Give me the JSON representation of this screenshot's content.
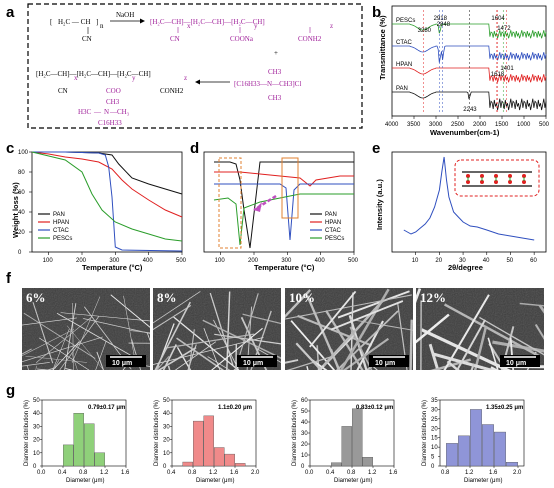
{
  "panels": {
    "a": "a",
    "b": "b",
    "c": "c",
    "d": "d",
    "e": "e",
    "f": "f",
    "g": "g"
  },
  "scheme": {
    "reagent": "NaOH",
    "plus": "+",
    "sub_n": "n",
    "sub_x": "x",
    "sub_y": "y",
    "sub_z": "z",
    "group_cn": "CN",
    "group_coona": "COONa",
    "group_conh2": "CONH2",
    "group_coo": "COO",
    "group_ch3": "CH3",
    "group_c16h33": "C16H33",
    "group_h3c": "H3C",
    "group_n": "N",
    "ctac_formula": "[C16H33—N—CH3]Cl"
  },
  "chart_data": [
    {
      "type": "line",
      "id": "b",
      "title": "",
      "xlabel": "Wavenumber(cm-1)",
      "ylabel": "Transmittance (%)",
      "xlim": [
        4000,
        500
      ],
      "x_ticks": [
        "4000",
        "3500",
        "3000",
        "2500",
        "2000",
        "1500",
        "1000",
        "500"
      ],
      "series": [
        {
          "name": "PESCs",
          "color": "#2a9d2a"
        },
        {
          "name": "CTAC",
          "color": "#2f4fbf"
        },
        {
          "name": "HPAN",
          "color": "#e02020"
        },
        {
          "name": "PAN",
          "color": "#111111"
        }
      ],
      "annotations": [
        "3280",
        "2918",
        "2848",
        "1604",
        "1472",
        "1618",
        "1401",
        "2243"
      ]
    },
    {
      "type": "line",
      "id": "c",
      "xlabel": "Temperature (°C)",
      "ylabel": "Weight loss (%)",
      "xlim": [
        50,
        500
      ],
      "ylim": [
        0,
        100
      ],
      "x_ticks": [
        "100",
        "200",
        "300",
        "400",
        "500"
      ],
      "y_ticks": [
        "0",
        "20",
        "40",
        "60",
        "80",
        "100"
      ],
      "series": [
        {
          "name": "PAN",
          "color": "#111111",
          "x": [
            50,
            150,
            250,
            290,
            310,
            350,
            400,
            450,
            500
          ],
          "y": [
            100,
            100,
            99,
            97,
            88,
            74,
            68,
            63,
            58
          ]
        },
        {
          "name": "HPAN",
          "color": "#e02020",
          "x": [
            50,
            100,
            150,
            200,
            250,
            290,
            320,
            350,
            400,
            450,
            500
          ],
          "y": [
            100,
            98,
            95,
            93,
            90,
            83,
            72,
            63,
            52,
            42,
            35
          ]
        },
        {
          "name": "CTAC",
          "color": "#2f4fbf",
          "x": [
            50,
            150,
            250,
            270,
            280,
            290,
            300,
            320,
            500
          ],
          "y": [
            100,
            100,
            99,
            97,
            85,
            55,
            5,
            2,
            1
          ]
        },
        {
          "name": "PESCs",
          "color": "#2a9d2a",
          "x": [
            50,
            100,
            150,
            200,
            230,
            260,
            300,
            350,
            400,
            450,
            500
          ],
          "y": [
            100,
            96,
            92,
            80,
            58,
            42,
            30,
            23,
            18,
            13,
            11
          ]
        }
      ]
    },
    {
      "type": "line",
      "id": "d",
      "xlabel": "Temperature (°C)",
      "xlim": [
        50,
        500
      ],
      "x_ticks": [
        "100",
        "200",
        "300",
        "400",
        "500"
      ],
      "series": [
        {
          "name": "PAN",
          "color": "#111111"
        },
        {
          "name": "HPAN",
          "color": "#e02020"
        },
        {
          "name": "CTAC",
          "color": "#2f4fbf"
        },
        {
          "name": "PESCs",
          "color": "#2a9d2a"
        }
      ]
    },
    {
      "type": "line",
      "id": "e",
      "xlabel": "2θ/degree",
      "ylabel": "Intensity (a.u.)",
      "xlim": [
        0,
        65
      ],
      "x_ticks": [
        "10",
        "20",
        "30",
        "40",
        "50",
        "60"
      ],
      "series": [
        {
          "name": "",
          "color": "#2f4fbf",
          "x": [
            5,
            8,
            10,
            12,
            14,
            16,
            18,
            20,
            21,
            22,
            23,
            24,
            26,
            28,
            30,
            33,
            36,
            40,
            45,
            50,
            55,
            60
          ],
          "y": [
            22,
            18,
            20,
            24,
            28,
            34,
            45,
            62,
            80,
            95,
            72,
            55,
            40,
            35,
            30,
            26,
            25,
            22,
            18,
            16,
            14,
            12
          ]
        }
      ]
    },
    {
      "type": "bar",
      "id": "g1",
      "annotation": "0.79±0.17 μm",
      "xlabel": "Diameter (μm)",
      "ylabel": "Diameter distribution (%)",
      "x_ticks": [
        "0.0",
        "0.4",
        "0.8",
        "1.2",
        "1.6"
      ],
      "y_ticks": [
        "0",
        "10",
        "20",
        "30",
        "40",
        "50"
      ],
      "xlim": [
        0,
        1.6
      ],
      "ylim": [
        0,
        50
      ],
      "color": "#8fd07a",
      "categories": [
        0.5,
        0.7,
        0.9,
        1.1
      ],
      "values": [
        16,
        40,
        32,
        10
      ]
    },
    {
      "type": "bar",
      "id": "g2",
      "annotation": "1.1±0.20 μm",
      "xlabel": "Diameter (μm)",
      "ylabel": "Diameter distribution (%)",
      "x_ticks": [
        "0.4",
        "0.8",
        "1.2",
        "1.6",
        "2.0"
      ],
      "y_ticks": [
        "0",
        "10",
        "20",
        "30",
        "40",
        "50"
      ],
      "xlim": [
        0.4,
        2.0
      ],
      "ylim": [
        0,
        50
      ],
      "color": "#f08a8a",
      "categories": [
        0.7,
        0.9,
        1.1,
        1.3,
        1.5,
        1.7
      ],
      "values": [
        3,
        34,
        38,
        14,
        9,
        2
      ]
    },
    {
      "type": "bar",
      "id": "g3",
      "annotation": "0.83±0.12 μm",
      "xlabel": "Diameter (μm)",
      "ylabel": "Diameter distribution (%)",
      "x_ticks": [
        "0.0",
        "0.4",
        "0.8",
        "1.2",
        "1.6"
      ],
      "y_ticks": [
        "0",
        "10",
        "20",
        "30",
        "40",
        "50",
        "60"
      ],
      "xlim": [
        0,
        1.6
      ],
      "ylim": [
        0,
        60
      ],
      "color": "#999999",
      "categories": [
        0.5,
        0.7,
        0.9,
        1.1
      ],
      "values": [
        3,
        36,
        52,
        8
      ]
    },
    {
      "type": "bar",
      "id": "g4",
      "annotation": "1.35±0.25 μm",
      "xlabel": "Diameter (μm)",
      "ylabel": "Diameter distribution (%)",
      "x_ticks": [
        "0.8",
        "1.2",
        "1.6",
        "2.0"
      ],
      "y_ticks": [
        "0",
        "5",
        "10",
        "15",
        "20",
        "25",
        "30",
        "35"
      ],
      "xlim": [
        0.7,
        2.1
      ],
      "ylim": [
        0,
        35
      ],
      "color": "#8f95d8",
      "categories": [
        0.9,
        1.1,
        1.3,
        1.5,
        1.7,
        1.9
      ],
      "values": [
        12,
        16,
        30,
        22,
        18,
        2
      ]
    }
  ],
  "sem": {
    "labels": [
      "6%",
      "8%",
      "10%",
      "12%"
    ],
    "scale_bar": "10 μm"
  }
}
